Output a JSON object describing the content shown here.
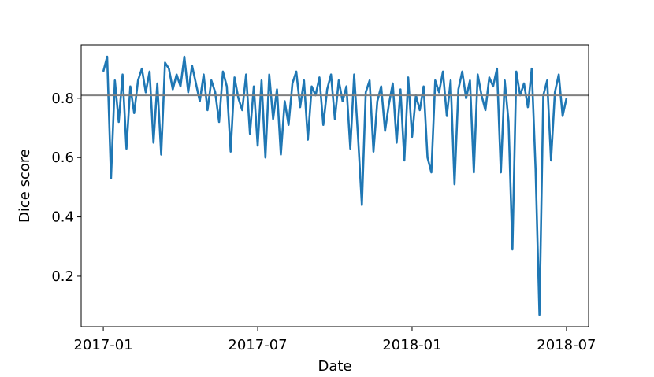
{
  "chart_data": {
    "type": "line",
    "xlabel": "Date",
    "ylabel": "Dice score",
    "x": [
      0,
      0.15,
      0.3,
      0.45,
      0.6,
      0.75,
      0.9,
      1.05,
      1.2,
      1.35,
      1.5,
      1.65,
      1.8,
      1.95,
      2.1,
      2.25,
      2.4,
      2.55,
      2.7,
      2.85,
      3,
      3.15,
      3.3,
      3.45,
      3.6,
      3.75,
      3.9,
      4.05,
      4.2,
      4.35,
      4.5,
      4.65,
      4.8,
      4.95,
      5.1,
      5.25,
      5.4,
      5.55,
      5.7,
      5.85,
      6,
      6.15,
      6.3,
      6.45,
      6.6,
      6.75,
      6.9,
      7.05,
      7.2,
      7.35,
      7.5,
      7.65,
      7.8,
      7.95,
      8.1,
      8.25,
      8.4,
      8.55,
      8.7,
      8.85,
      9,
      9.15,
      9.3,
      9.45,
      9.6,
      9.75,
      9.9,
      10.05,
      10.2,
      10.35,
      10.5,
      10.65,
      10.8,
      10.95,
      11.1,
      11.25,
      11.4,
      11.55,
      11.7,
      11.85,
      12,
      12.15,
      12.3,
      12.45,
      12.6,
      12.75,
      12.9,
      13.05,
      13.2,
      13.35,
      13.5,
      13.65,
      13.8,
      13.95,
      14.1,
      14.25,
      14.4,
      14.55,
      14.7,
      14.85,
      15,
      15.15,
      15.3,
      15.45,
      15.6,
      15.75,
      15.9,
      16.05,
      16.2,
      16.35,
      16.5,
      16.65,
      16.8,
      16.95,
      17.1,
      17.25,
      17.4,
      17.55,
      17.7,
      17.85,
      18
    ],
    "series": [
      {
        "name": "Dice score",
        "color": "#1f77b4",
        "values": [
          0.89,
          0.94,
          0.53,
          0.86,
          0.72,
          0.88,
          0.63,
          0.84,
          0.75,
          0.86,
          0.9,
          0.82,
          0.89,
          0.65,
          0.85,
          0.61,
          0.92,
          0.9,
          0.83,
          0.88,
          0.84,
          0.94,
          0.82,
          0.91,
          0.85,
          0.79,
          0.88,
          0.76,
          0.86,
          0.82,
          0.72,
          0.89,
          0.84,
          0.62,
          0.87,
          0.8,
          0.76,
          0.88,
          0.68,
          0.84,
          0.64,
          0.86,
          0.6,
          0.88,
          0.73,
          0.83,
          0.61,
          0.79,
          0.71,
          0.85,
          0.89,
          0.77,
          0.86,
          0.66,
          0.84,
          0.81,
          0.87,
          0.71,
          0.83,
          0.88,
          0.73,
          0.86,
          0.79,
          0.84,
          0.63,
          0.88,
          0.67,
          0.44,
          0.82,
          0.86,
          0.62,
          0.79,
          0.84,
          0.69,
          0.78,
          0.85,
          0.65,
          0.83,
          0.59,
          0.87,
          0.67,
          0.81,
          0.76,
          0.84,
          0.6,
          0.55,
          0.86,
          0.82,
          0.89,
          0.74,
          0.86,
          0.51,
          0.83,
          0.89,
          0.8,
          0.86,
          0.55,
          0.88,
          0.81,
          0.76,
          0.87,
          0.84,
          0.9,
          0.55,
          0.86,
          0.72,
          0.29,
          0.89,
          0.81,
          0.85,
          0.77,
          0.9,
          0.56,
          0.07,
          0.81,
          0.86,
          0.59,
          0.82,
          0.88,
          0.74,
          0.8
        ]
      }
    ],
    "reference_line": {
      "value": 0.81,
      "color": "#808080"
    },
    "xlim": [
      -0.86,
      18.86
    ],
    "xticks": [
      {
        "value": 0,
        "label": "2017-01"
      },
      {
        "value": 6,
        "label": "2017-07"
      },
      {
        "value": 12,
        "label": "2018-01"
      },
      {
        "value": 18,
        "label": "2018-07"
      }
    ],
    "ylim": [
      0.03,
      0.98
    ],
    "yticks": [
      0.2,
      0.4,
      0.6,
      0.8
    ],
    "grid": false
  }
}
